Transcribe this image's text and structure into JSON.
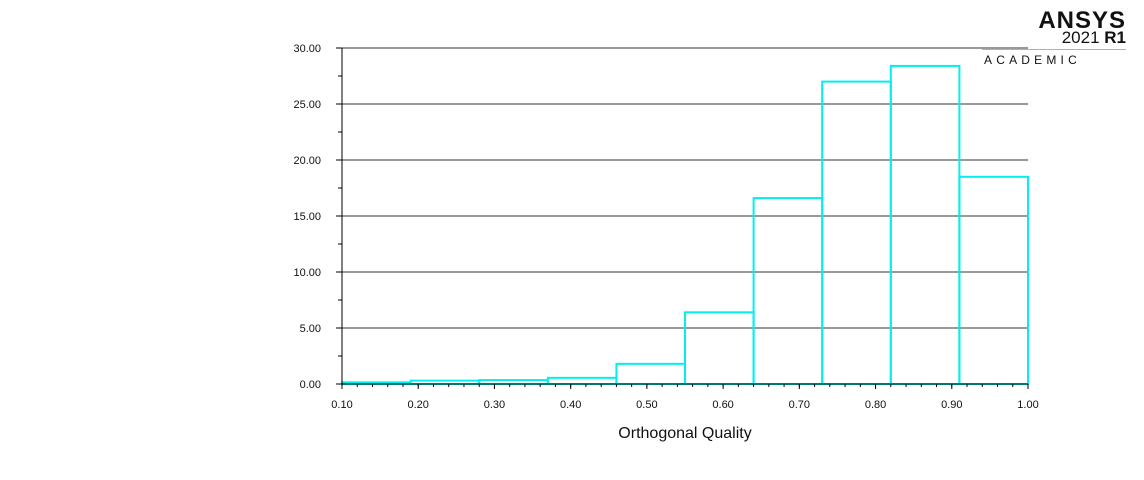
{
  "chart_data": {
    "type": "bar",
    "title": "",
    "xlabel": "Orthogonal Quality",
    "ylabel": "",
    "bin_edges": [
      0.1,
      0.19,
      0.28,
      0.37,
      0.46,
      0.55,
      0.64,
      0.73,
      0.82,
      0.91,
      1.0
    ],
    "values": [
      0.15,
      0.3,
      0.35,
      0.55,
      1.8,
      6.4,
      16.6,
      27.0,
      28.4,
      18.5
    ],
    "xlim": [
      0.1,
      1.0
    ],
    "ylim": [
      0,
      30
    ],
    "x_ticks": [
      "0.10",
      "0.20",
      "0.30",
      "0.40",
      "0.50",
      "0.60",
      "0.70",
      "0.80",
      "0.90",
      "1.00"
    ],
    "y_ticks": [
      "0.00",
      "5.00",
      "10.00",
      "15.00",
      "20.00",
      "25.00",
      "30.00"
    ],
    "grid": "horizontal",
    "colors": {
      "bar_stroke": "#00f0f0",
      "grid": "#333333",
      "axis": "#000000"
    }
  },
  "logo": {
    "brand": "ANSYS",
    "version": "2021",
    "release": "R1",
    "edition": "ACADEMIC"
  }
}
